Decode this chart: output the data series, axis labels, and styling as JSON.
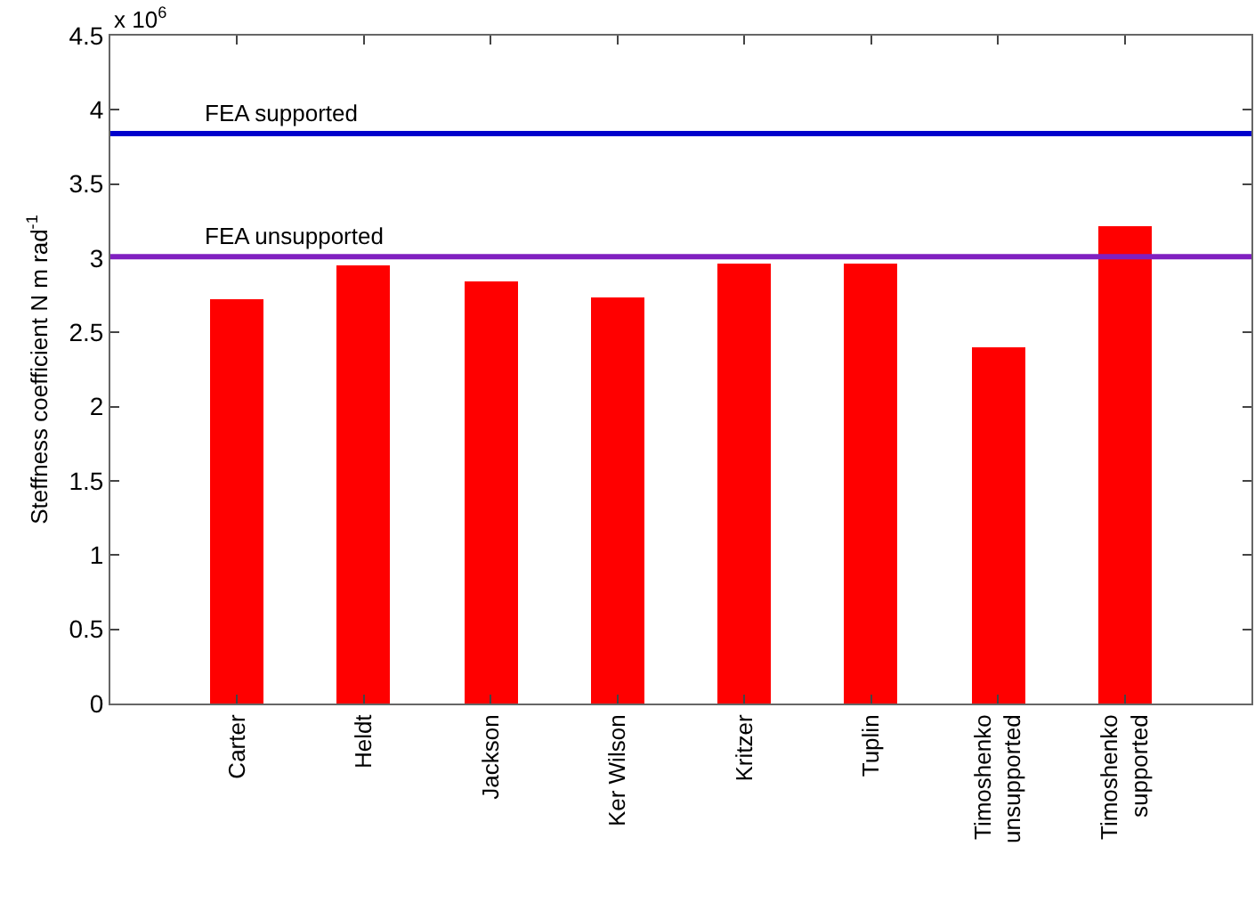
{
  "chart_data": {
    "type": "bar",
    "ylabel": "Steffness coefficient N m rad$^{-1}$",
    "categories": [
      "Carter",
      "Heldt",
      "Jackson",
      "Ker Wilson",
      "Kritzer",
      "Tuplin",
      "Timoshenko\nunsupported",
      "Timoshenko\nsupported"
    ],
    "values": [
      2.73,
      2.95,
      2.85,
      2.74,
      2.96,
      2.97,
      2.4,
      3.22
    ],
    "color": "#ff0000",
    "ylim": [
      0,
      4.5
    ],
    "yticks": [
      0,
      0.5,
      1,
      1.5,
      2,
      2.5,
      3,
      3.5,
      4,
      4.5
    ],
    "annotations": [
      "x 10$^{6}$"
    ],
    "ref_lines": [
      {
        "axis": "y",
        "value": 3.84,
        "label": "FEA supported",
        "color": "#0000cc"
      },
      {
        "axis": "y",
        "value": 3.01,
        "label": "FEA unsupported",
        "color": "#8020c0"
      }
    ]
  }
}
